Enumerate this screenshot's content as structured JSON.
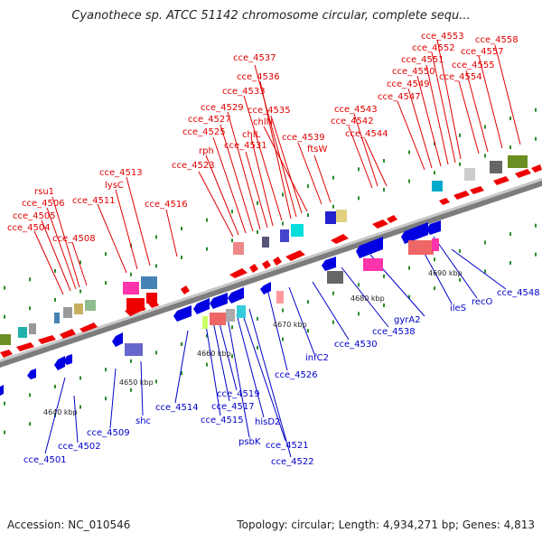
{
  "title": "Cyanothece sp. ATCC 51142 chromosome circular, complete sequ...",
  "footer": {
    "accession": "Accession: NC_010546",
    "summary": "Topology: circular; Length: 4,934,271 bp; Genes: 4,813"
  },
  "colors": {
    "forward_gene": "#ee0000",
    "reverse_gene": "#0000e0",
    "backbone": "#888888",
    "tick": "#2a8a2a",
    "label_red": "#e00000",
    "label_blue": "#0000c8"
  },
  "kbp_labels": [
    "4640 kbp",
    "4650 kbp",
    "4660 kbp",
    "4670 kbp",
    "4680 kbp",
    "4690 kbp"
  ],
  "top_labels": [
    "cce_4504",
    "cce_4505",
    "cce_4506",
    "rsu1",
    "cce_4508",
    "cce_4511",
    "lysC",
    "cce_4513",
    "cce_4516",
    "cce_4523",
    "rph",
    "cce_4525",
    "cce_4527",
    "cce_4529",
    "cce_4531",
    "chlL",
    "cce_4533",
    "cce_4536",
    "cce_4537",
    "cce_4535",
    "chlN",
    "cce_4539",
    "ftsW",
    "cce_4542",
    "cce_4543",
    "cce_4544",
    "cce_4547",
    "cce_4549",
    "cce_4550",
    "cce_4551",
    "cce_4552",
    "cce_4553",
    "cce_4554",
    "cce_4555",
    "cce_4557",
    "cce_4558"
  ],
  "bottom_labels": [
    "cce_4501",
    "cce_4502",
    "cce_4509",
    "shc",
    "cce_4514",
    "cce_4515",
    "cce_4517",
    "cce_4519",
    "psbK",
    "hisD2",
    "cce_4521",
    "cce_4522",
    "cce_4526",
    "infC2",
    "cce_4530",
    "cce_4538",
    "gyrA2",
    "ileS",
    "recO",
    "cce_4548"
  ]
}
